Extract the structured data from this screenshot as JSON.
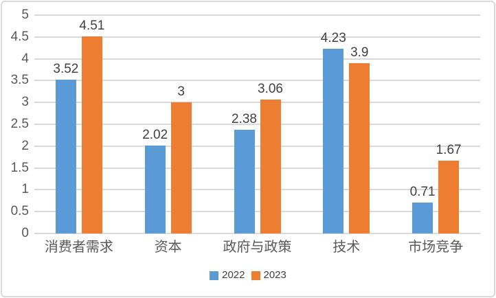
{
  "chart_data": {
    "type": "bar",
    "title": "",
    "xlabel": "",
    "ylabel": "",
    "categories": [
      "消费者需求",
      "资本",
      "政府与政策",
      "技术",
      "市场竞争"
    ],
    "series": [
      {
        "name": "2022",
        "color": "#5B9BD5",
        "values": [
          3.52,
          2.02,
          2.38,
          4.23,
          0.71
        ],
        "labels": [
          "3.52",
          "2.02",
          "2.38",
          "4.23",
          "0.71"
        ]
      },
      {
        "name": "2023",
        "color": "#ED7D31",
        "values": [
          4.51,
          3,
          3.06,
          3.9,
          1.67
        ],
        "labels": [
          "4.51",
          "3",
          "3.06",
          "3.9",
          "1.67"
        ]
      }
    ],
    "ylim": [
      0,
      5
    ],
    "yticks": [
      0,
      0.5,
      1,
      1.5,
      2,
      2.5,
      3,
      3.5,
      4,
      4.5,
      5
    ],
    "grid": true,
    "legend_position": "bottom"
  },
  "colors": {
    "gridline": "#D9D9D9",
    "axis_text": "#595959",
    "value_label_text": "#404040",
    "frame_border": "#D9D9D9",
    "background": "#FFFFFF"
  }
}
